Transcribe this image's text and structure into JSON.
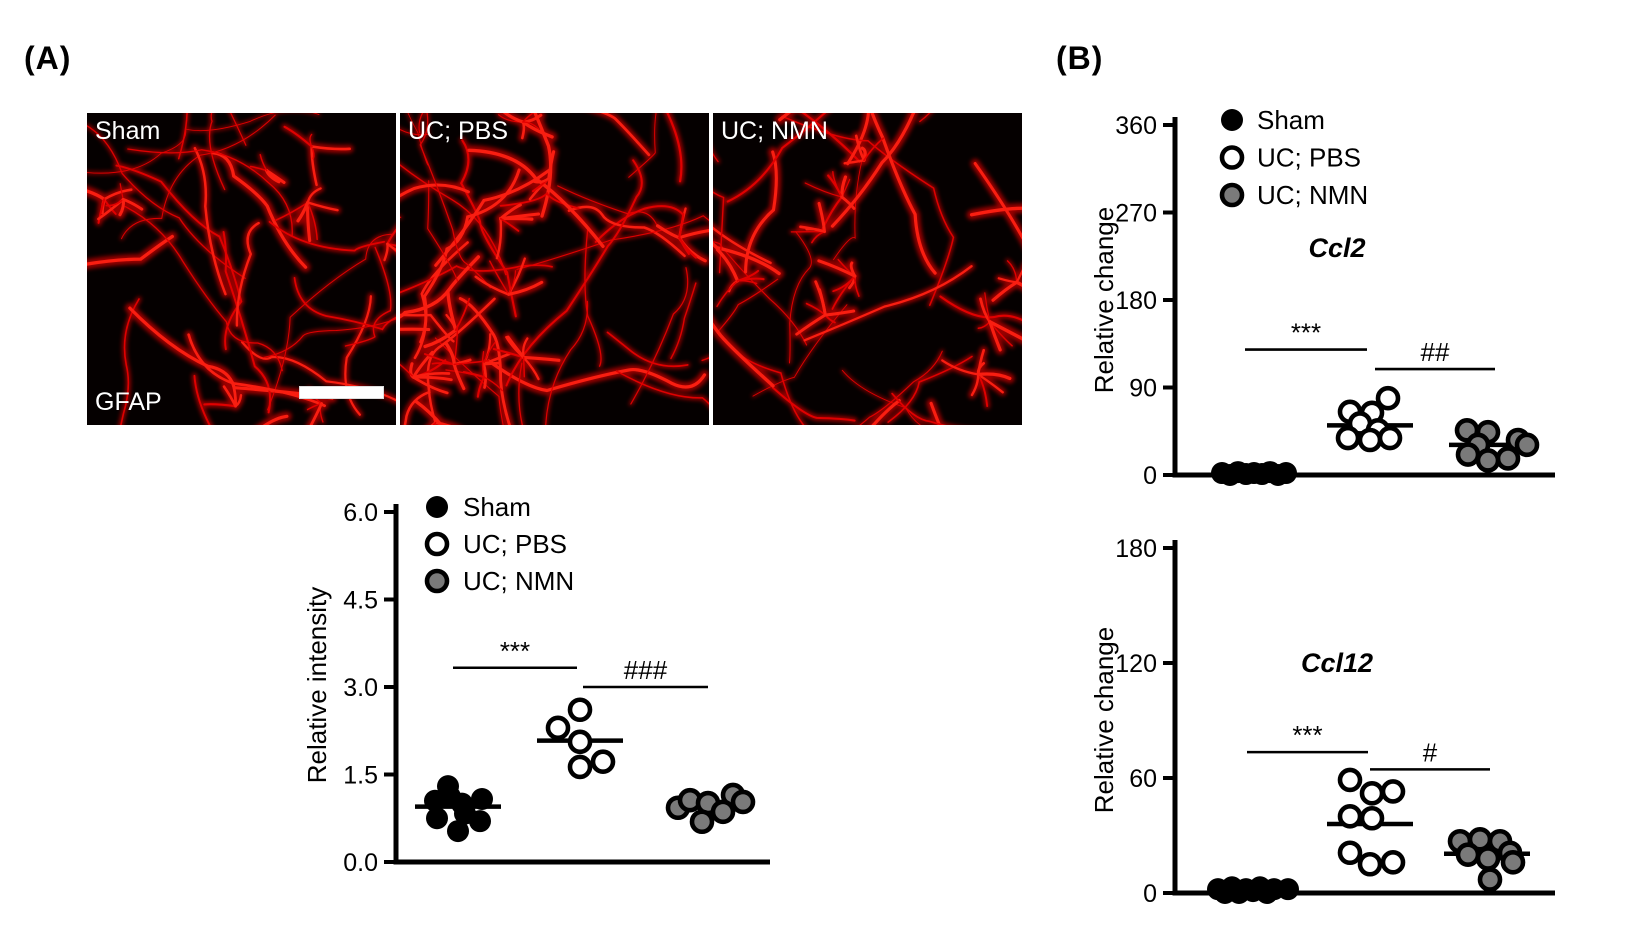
{
  "panels": {
    "a_label": "(A)",
    "b_label": "(B)"
  },
  "micrographs": {
    "stain_label": "GFAP",
    "images": [
      {
        "label": "Sham"
      },
      {
        "label": "UC; PBS"
      },
      {
        "label": "UC; NMN"
      }
    ],
    "has_scale_bar": true
  },
  "colors": {
    "axis": "#000000",
    "filled_fill": "#000000",
    "open_fill": "#ffffff",
    "gray_fill": "#7a7a7a",
    "marker_stroke": "#000000",
    "signal_red": "#e60000"
  },
  "legend_items": [
    {
      "label": "Sham",
      "style": "filled"
    },
    {
      "label": "UC; PBS",
      "style": "open"
    },
    {
      "label": "UC; NMN",
      "style": "gray"
    }
  ],
  "chart_data": [
    {
      "id": "gfap-relative-intensity",
      "type": "scatter",
      "title": "",
      "ylabel": "Relative intensity",
      "ylim": [
        0,
        6
      ],
      "yticks": [
        0,
        1.5,
        3,
        4.5,
        6
      ],
      "ytick_labels": [
        "0.0",
        "1.5",
        "3.0",
        "4.5",
        "6.0"
      ],
      "legend": [
        "Sham",
        "UC; PBS",
        "UC; NMN"
      ],
      "grid": false,
      "groups": [
        {
          "name": "Sham",
          "style": "filled",
          "mean": 0.95,
          "points": [
            [
              -10,
              1.3
            ],
            [
              -23,
              1.05
            ],
            [
              4,
              1.0
            ],
            [
              24,
              1.08
            ],
            [
              -21,
              0.75
            ],
            [
              7,
              0.83
            ],
            [
              22,
              0.7
            ],
            [
              0,
              0.53
            ],
            [
              -8,
              1.12
            ]
          ]
        },
        {
          "name": "UC; PBS",
          "style": "open",
          "mean": 2.08,
          "points": [
            [
              0,
              2.61
            ],
            [
              -22,
              2.3
            ],
            [
              0,
              2.06
            ],
            [
              23,
              1.72
            ],
            [
              0,
              1.63
            ]
          ]
        },
        {
          "name": "UC; NMN",
          "style": "gray",
          "mean": 0.98,
          "points": [
            [
              -32,
              0.93
            ],
            [
              -20,
              1.06
            ],
            [
              -2,
              1.01
            ],
            [
              23,
              1.15
            ],
            [
              13,
              0.86
            ],
            [
              -8,
              0.69
            ],
            [
              33,
              1.03
            ]
          ]
        }
      ],
      "significance": [
        {
          "label": "***",
          "between": [
            "Sham",
            "UC; PBS"
          ],
          "line_value": 3.33
        },
        {
          "label": "###",
          "between": [
            "UC; PBS",
            "UC; NMN"
          ],
          "line_value": 3.0
        }
      ]
    },
    {
      "id": "ccl2-relative-change",
      "type": "scatter",
      "title": "Ccl2",
      "ylabel": "Relative change",
      "ylim": [
        0,
        360
      ],
      "yticks": [
        0,
        90,
        180,
        270,
        360
      ],
      "ytick_labels": [
        "0",
        "90",
        "180",
        "270",
        "360"
      ],
      "legend": [
        "Sham",
        "UC; PBS",
        "UC; NMN"
      ],
      "grid": false,
      "groups": [
        {
          "name": "Sham",
          "style": "filled",
          "mean": null,
          "points": [
            [
              -30,
              2
            ],
            [
              -14,
              3
            ],
            [
              2,
              2
            ],
            [
              18,
              3
            ],
            [
              34,
              2
            ],
            [
              -22,
              0
            ],
            [
              10,
              1
            ],
            [
              26,
              0
            ],
            [
              -6,
              1
            ]
          ]
        },
        {
          "name": "UC; PBS",
          "style": "open",
          "mean": 51,
          "points": [
            [
              18,
              79
            ],
            [
              -20,
              65
            ],
            [
              2,
              64
            ],
            [
              -10,
              53
            ],
            [
              8,
              46
            ],
            [
              -22,
              38
            ],
            [
              0,
              36
            ],
            [
              20,
              38
            ]
          ]
        },
        {
          "name": "UC; NMN",
          "style": "gray",
          "mean": 31,
          "points": [
            [
              -25,
              46
            ],
            [
              -4,
              44
            ],
            [
              26,
              36
            ],
            [
              35,
              31
            ],
            [
              -14,
              31
            ],
            [
              -24,
              21
            ],
            [
              16,
              17
            ],
            [
              -4,
              15
            ]
          ]
        }
      ],
      "significance": [
        {
          "label": "***",
          "between": [
            "Sham",
            "UC; PBS"
          ],
          "line_value": 129
        },
        {
          "label": "##",
          "between": [
            "UC; PBS",
            "UC; NMN"
          ],
          "line_value": 109
        }
      ]
    },
    {
      "id": "ccl12-relative-change",
      "type": "scatter",
      "title": "Ccl12",
      "ylabel": "Relative change",
      "ylim": [
        0,
        180
      ],
      "yticks": [
        0,
        60,
        120,
        180
      ],
      "ytick_labels": [
        "0",
        "60",
        "120",
        "180"
      ],
      "legend": [],
      "grid": false,
      "groups": [
        {
          "name": "Sham",
          "style": "filled",
          "mean": null,
          "points": [
            [
              -34,
              2
            ],
            [
              -20,
              3
            ],
            [
              -6,
              2
            ],
            [
              8,
              3
            ],
            [
              22,
              2
            ],
            [
              36,
              2
            ],
            [
              -27,
              0
            ],
            [
              -13,
              0
            ],
            [
              1,
              1
            ],
            [
              15,
              0
            ]
          ]
        },
        {
          "name": "UC; PBS",
          "style": "open",
          "mean": 36,
          "points": [
            [
              -20,
              59
            ],
            [
              2,
              52
            ],
            [
              23,
              53
            ],
            [
              -20,
              40
            ],
            [
              2,
              39
            ],
            [
              -20,
              21
            ],
            [
              0,
              15
            ],
            [
              23,
              16
            ]
          ]
        },
        {
          "name": "UC; NMN",
          "style": "gray",
          "mean": 20.5,
          "points": [
            [
              -27,
              27
            ],
            [
              -7,
              28
            ],
            [
              13,
              27
            ],
            [
              -19,
              20
            ],
            [
              1,
              18
            ],
            [
              23,
              21
            ],
            [
              26,
              16
            ],
            [
              3,
              7
            ]
          ]
        }
      ],
      "significance": [
        {
          "label": "***",
          "between": [
            "Sham",
            "UC; PBS"
          ],
          "line_value": 73.5
        },
        {
          "label": "#",
          "between": [
            "UC; PBS",
            "UC; NMN"
          ],
          "line_value": 64.5
        }
      ]
    }
  ]
}
